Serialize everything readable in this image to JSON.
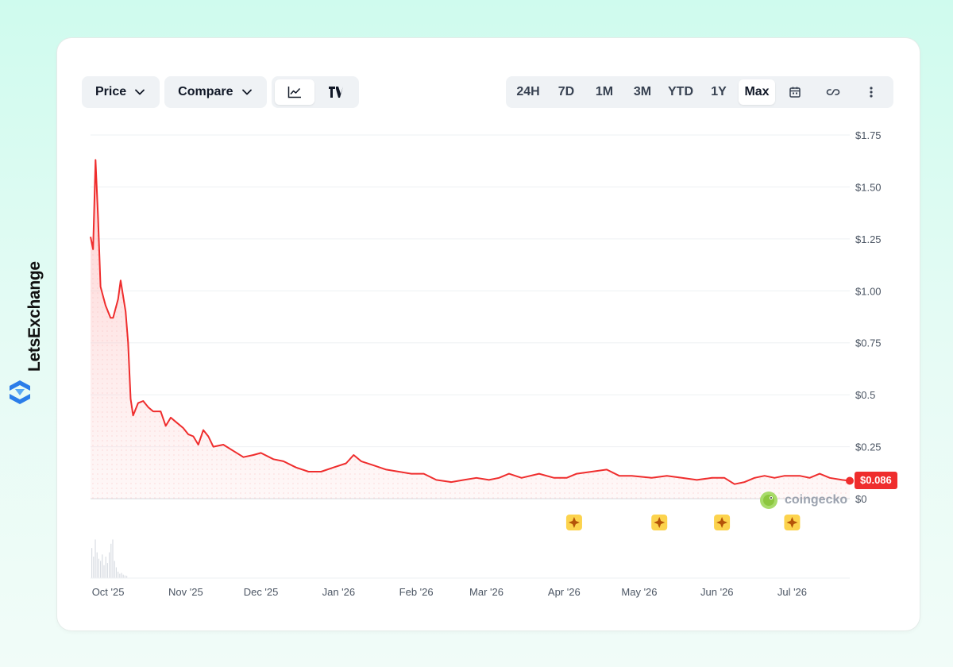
{
  "brand": {
    "name": "LetsExchange"
  },
  "toolbar": {
    "price_label": "Price",
    "compare_label": "Compare",
    "chart_type_line": "line-chart-icon",
    "chart_type_tv": "tradingview-icon"
  },
  "ranges": [
    "24H",
    "7D",
    "1M",
    "3M",
    "YTD",
    "1Y",
    "Max"
  ],
  "active_range": "Max",
  "current_price_label": "$0.086",
  "watermark": "coingecko",
  "colors": {
    "line": "#ef2d2d",
    "fill": "#fde2e2",
    "accent_badge": "#ef2d2d",
    "event": "#fcd34d"
  },
  "chart_data": {
    "type": "area",
    "ylabels": [
      "$0",
      "$0.25",
      "$0.5",
      "$0.75",
      "$1.00",
      "$1.25",
      "$1.50",
      "$1.75"
    ],
    "ylim": [
      0,
      1.75
    ],
    "xlabels": [
      "Oct '25",
      "Nov '25",
      "Dec '25",
      "Jan '26",
      "Feb '26",
      "Mar '26",
      "Apr '26",
      "May '26",
      "Jun '26",
      "Jul '26"
    ],
    "grid": true,
    "series": [
      {
        "values": [
          [
            "2025-09-24",
            1.26
          ],
          [
            "2025-09-25",
            1.2
          ],
          [
            "2025-09-26",
            1.63
          ],
          [
            "2025-09-27",
            1.35
          ],
          [
            "2025-09-28",
            1.02
          ],
          [
            "2025-09-30",
            0.93
          ],
          [
            "2025-10-02",
            0.87
          ],
          [
            "2025-10-03",
            0.87
          ],
          [
            "2025-10-05",
            0.96
          ],
          [
            "2025-10-06",
            1.05
          ],
          [
            "2025-10-08",
            0.9
          ],
          [
            "2025-10-09",
            0.75
          ],
          [
            "2025-10-10",
            0.48
          ],
          [
            "2025-10-11",
            0.4
          ],
          [
            "2025-10-13",
            0.46
          ],
          [
            "2025-10-15",
            0.47
          ],
          [
            "2025-10-17",
            0.44
          ],
          [
            "2025-10-19",
            0.42
          ],
          [
            "2025-10-22",
            0.42
          ],
          [
            "2025-10-24",
            0.35
          ],
          [
            "2025-10-26",
            0.39
          ],
          [
            "2025-10-28",
            0.37
          ],
          [
            "2025-10-31",
            0.34
          ],
          [
            "2025-11-02",
            0.31
          ],
          [
            "2025-11-04",
            0.3
          ],
          [
            "2025-11-06",
            0.26
          ],
          [
            "2025-11-08",
            0.33
          ],
          [
            "2025-11-10",
            0.3
          ],
          [
            "2025-11-12",
            0.25
          ],
          [
            "2025-11-16",
            0.26
          ],
          [
            "2025-11-20",
            0.23
          ],
          [
            "2025-11-24",
            0.2
          ],
          [
            "2025-11-28",
            0.21
          ],
          [
            "2025-12-01",
            0.22
          ],
          [
            "2025-12-06",
            0.19
          ],
          [
            "2025-12-10",
            0.18
          ],
          [
            "2025-12-15",
            0.15
          ],
          [
            "2025-12-20",
            0.13
          ],
          [
            "2025-12-25",
            0.13
          ],
          [
            "2025-12-30",
            0.15
          ],
          [
            "2026-01-04",
            0.17
          ],
          [
            "2026-01-07",
            0.21
          ],
          [
            "2026-01-10",
            0.18
          ],
          [
            "2026-01-15",
            0.16
          ],
          [
            "2026-01-20",
            0.14
          ],
          [
            "2026-01-25",
            0.13
          ],
          [
            "2026-01-30",
            0.12
          ],
          [
            "2026-02-04",
            0.12
          ],
          [
            "2026-02-09",
            0.09
          ],
          [
            "2026-02-15",
            0.08
          ],
          [
            "2026-02-20",
            0.09
          ],
          [
            "2026-02-25",
            0.1
          ],
          [
            "2026-03-02",
            0.09
          ],
          [
            "2026-03-06",
            0.1
          ],
          [
            "2026-03-10",
            0.12
          ],
          [
            "2026-03-15",
            0.1
          ],
          [
            "2026-03-22",
            0.12
          ],
          [
            "2026-03-28",
            0.1
          ],
          [
            "2026-04-02",
            0.1
          ],
          [
            "2026-04-06",
            0.12
          ],
          [
            "2026-04-12",
            0.13
          ],
          [
            "2026-04-18",
            0.14
          ],
          [
            "2026-04-23",
            0.11
          ],
          [
            "2026-04-28",
            0.11
          ],
          [
            "2026-05-06",
            0.1
          ],
          [
            "2026-05-12",
            0.11
          ],
          [
            "2026-05-18",
            0.1
          ],
          [
            "2026-05-24",
            0.09
          ],
          [
            "2026-05-30",
            0.1
          ],
          [
            "2026-06-04",
            0.1
          ],
          [
            "2026-06-08",
            0.07
          ],
          [
            "2026-06-12",
            0.08
          ],
          [
            "2026-06-16",
            0.1
          ],
          [
            "2026-06-20",
            0.11
          ],
          [
            "2026-06-24",
            0.1
          ],
          [
            "2026-06-28",
            0.11
          ],
          [
            "2026-07-04",
            0.11
          ],
          [
            "2026-07-08",
            0.1
          ],
          [
            "2026-07-12",
            0.12
          ],
          [
            "2026-07-16",
            0.1
          ],
          [
            "2026-07-21",
            0.09
          ],
          [
            "2026-07-24",
            0.086
          ]
        ]
      }
    ],
    "events": [
      "2026-04-05",
      "2026-05-09",
      "2026-06-03",
      "2026-07-01"
    ]
  }
}
